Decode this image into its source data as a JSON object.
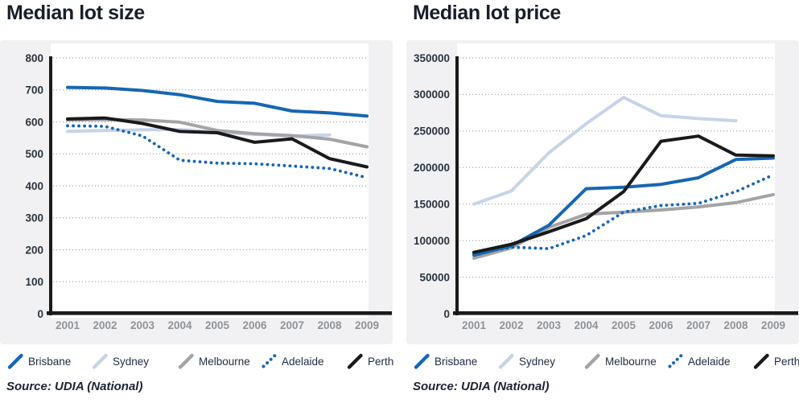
{
  "source": {
    "text": "Source: UDIA (National)"
  },
  "colors": {
    "brisbane": "#1766b1",
    "sydney": "#c6d4e9",
    "melbourne": "#a4a4a6",
    "adelaide": "#1766b1",
    "perth": "#1a1a1c",
    "axis": "#1a1a1a",
    "grid": "#ababad",
    "panel": "#f1f1f3",
    "plot_bg": "#ffffff",
    "title_text": "#171f2b",
    "ytick_text": "#2a3440",
    "xtick_text": "#8f9398",
    "legend_text": "#1c2c40"
  },
  "legend": {
    "items": [
      {
        "label": "Brisbane",
        "color_key": "brisbane",
        "style": "solid"
      },
      {
        "label": "Sydney",
        "color_key": "sydney",
        "style": "solid"
      },
      {
        "label": "Melbourne",
        "color_key": "melbourne",
        "style": "solid"
      },
      {
        "label": "Adelaide",
        "color_key": "adelaide",
        "style": "dotted"
      },
      {
        "label": "Perth",
        "color_key": "perth",
        "style": "solid"
      }
    ]
  },
  "chart_data": [
    {
      "type": "line",
      "title": "Median lot size",
      "x": [
        "2001",
        "2002",
        "2003",
        "2004",
        "2005",
        "2006",
        "2007",
        "2008",
        "2009"
      ],
      "ylim": [
        0,
        800
      ],
      "grid": true,
      "legend_position": "bottom",
      "yticks": [
        {
          "v": 0,
          "label": "0"
        },
        {
          "v": 100,
          "label": "100"
        },
        {
          "v": 200,
          "label": "200"
        },
        {
          "v": 300,
          "label": "300"
        },
        {
          "v": 400,
          "label": "400"
        },
        {
          "v": 500,
          "label": "500"
        },
        {
          "v": 600,
          "label": "600"
        },
        {
          "v": 700,
          "label": "700"
        },
        {
          "v": 800,
          "label": "800"
        }
      ],
      "series": [
        {
          "name": "Brisbane",
          "color_key": "brisbane",
          "style": "solid",
          "values": [
            708,
            706,
            698,
            685,
            664,
            658,
            634,
            628,
            618
          ]
        },
        {
          "name": "Sydney",
          "color_key": "sydney",
          "style": "solid",
          "values": [
            570,
            573,
            575,
            576,
            568,
            561,
            556,
            559,
            null
          ]
        },
        {
          "name": "Melbourne",
          "color_key": "melbourne",
          "style": "solid",
          "values": [
            606,
            607,
            606,
            599,
            573,
            563,
            557,
            546,
            522
          ]
        },
        {
          "name": "Adelaide",
          "color_key": "adelaide",
          "style": "dotted",
          "values": [
            588,
            586,
            556,
            480,
            471,
            469,
            462,
            454,
            426
          ]
        },
        {
          "name": "Perth",
          "color_key": "perth",
          "style": "solid",
          "values": [
            609,
            612,
            595,
            570,
            566,
            536,
            547,
            485,
            459
          ]
        }
      ]
    },
    {
      "type": "line",
      "title": "Median lot price",
      "x": [
        "2001",
        "2002",
        "2003",
        "2004",
        "2005",
        "2006",
        "2007",
        "2008",
        "2009"
      ],
      "ylim": [
        0,
        350000
      ],
      "grid": true,
      "legend_position": "bottom",
      "yticks": [
        {
          "v": 0,
          "label": "0"
        },
        {
          "v": 50000,
          "label": "50000"
        },
        {
          "v": 100000,
          "label": "100000"
        },
        {
          "v": 150000,
          "label": "150000"
        },
        {
          "v": 200000,
          "label": "200000"
        },
        {
          "v": 250000,
          "label": "250000"
        },
        {
          "v": 300000,
          "label": "300000"
        },
        {
          "v": 350000,
          "label": "350000"
        }
      ],
      "series": [
        {
          "name": "Brisbane",
          "color_key": "brisbane",
          "style": "solid",
          "values": [
            80000,
            93000,
            121000,
            171000,
            173000,
            177000,
            186000,
            211000,
            213000
          ]
        },
        {
          "name": "Sydney",
          "color_key": "sydney",
          "style": "solid",
          "values": [
            150000,
            168000,
            220000,
            260000,
            296000,
            271000,
            267000,
            264000,
            null
          ]
        },
        {
          "name": "Melbourne",
          "color_key": "melbourne",
          "style": "solid",
          "values": [
            76000,
            90000,
            118000,
            136000,
            139000,
            142000,
            146000,
            152000,
            163000
          ]
        },
        {
          "name": "Adelaide",
          "color_key": "adelaide",
          "style": "dotted",
          "values": [
            82000,
            91000,
            89000,
            107000,
            139000,
            148000,
            151000,
            167000,
            190000
          ]
        },
        {
          "name": "Perth",
          "color_key": "perth",
          "style": "solid",
          "values": [
            84000,
            95000,
            112000,
            130000,
            167000,
            236000,
            243000,
            217000,
            216000
          ]
        }
      ]
    }
  ]
}
